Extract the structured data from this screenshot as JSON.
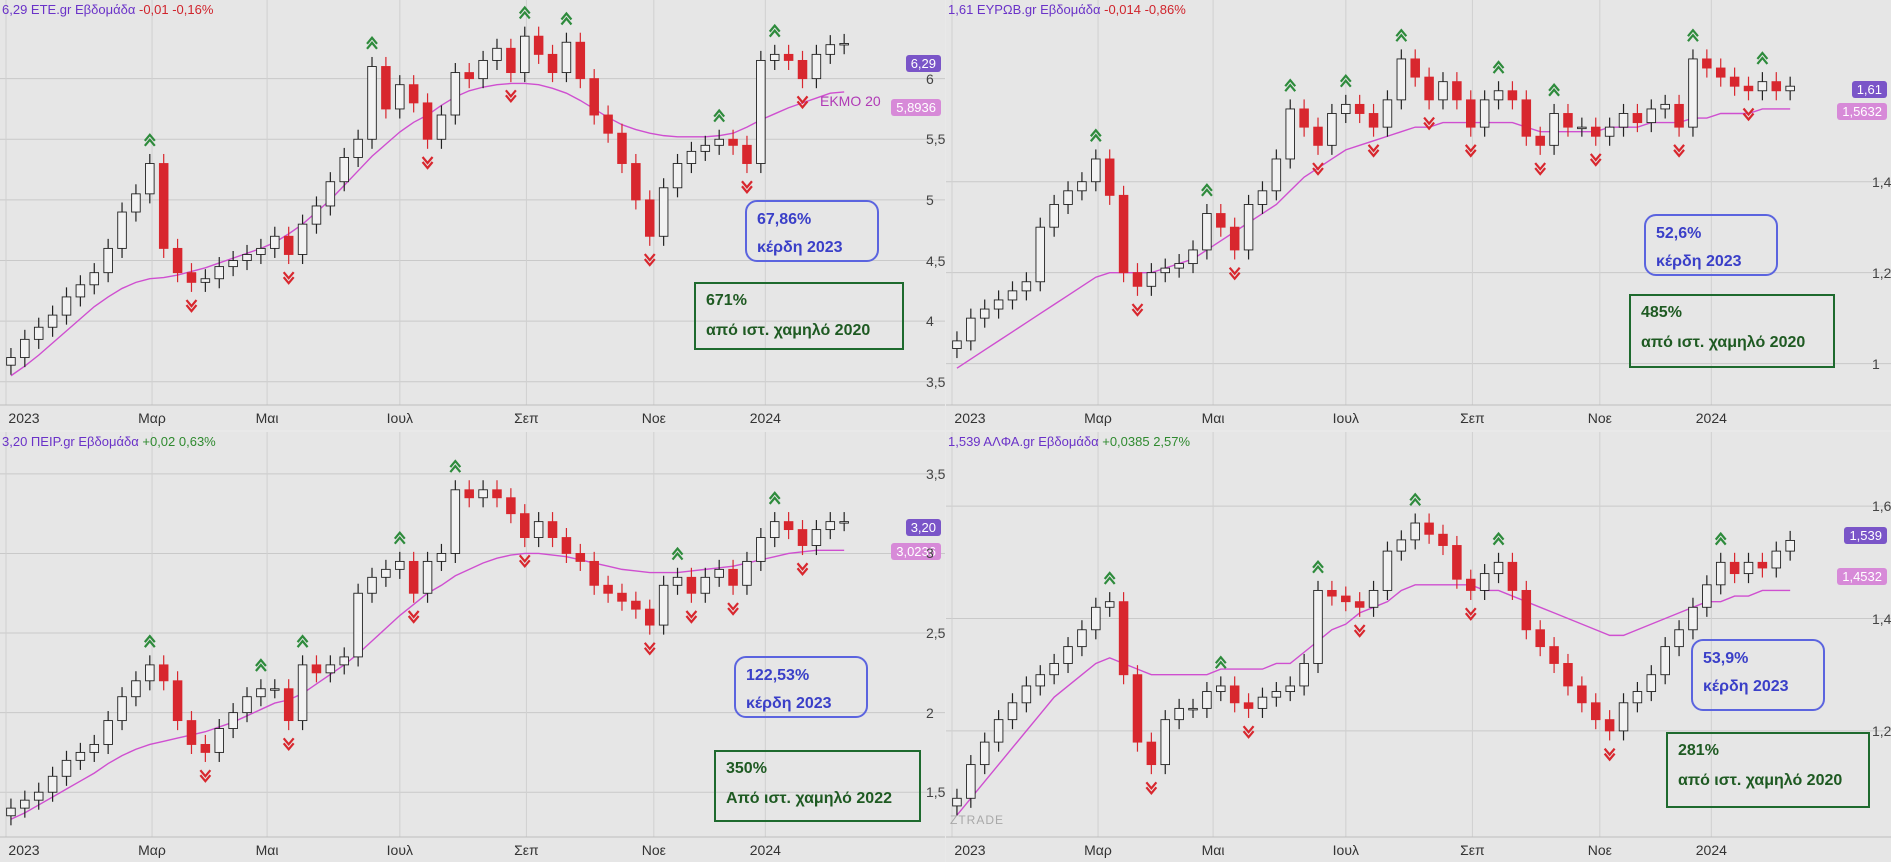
{
  "colors": {
    "up_fill": "#f2f2f2",
    "down_fill": "#d8272e",
    "ma": "#cf4fd0",
    "up_arrow": "#2e8b3c",
    "down_arrow": "#d8272e",
    "close_badge": "#7a55c8",
    "ma_badge": "#d78ad8"
  },
  "x_labels": [
    "2023",
    "Μαρ",
    "Μαι",
    "Ιουλ",
    "Σεπ",
    "Νοε",
    "2024"
  ],
  "watermark": "ZTRADE",
  "panels": [
    {
      "symbol_text": "6,29 ΕΤΕ.gr Εβδομάδα",
      "change_text": "-0,01 -0,16%",
      "close_badge": "6,29",
      "ma_badge": "5,8936",
      "ma_label": "ΕΚΜΟ 20",
      "blue_box": [
        "67,86%",
        "κέρδη 2023"
      ],
      "green_box": [
        "671%",
        "από ιστ. χαμηλό 2020"
      ],
      "y_ticks": [
        "3,5",
        "4",
        "4,5",
        "5",
        "5,5",
        "6"
      ]
    },
    {
      "symbol_text": "1,61 ΕΥΡΩΒ.gr Εβδομάδα",
      "change_text": "-0,014 -0,86%",
      "close_badge": "1,61",
      "ma_badge": "1,5632",
      "ma_label": "",
      "blue_box": [
        "52,6%",
        "κέρδη 2023"
      ],
      "green_box": [
        "485%",
        "από ιστ. χαμηλό 2020"
      ],
      "y_ticks": [
        "1",
        "1,2",
        "1,4"
      ]
    },
    {
      "symbol_text": "3,20 ΠΕΙΡ.gr Εβδομάδα",
      "change_text": "+0,02 0,63%",
      "close_badge": "3,20",
      "ma_badge": "3,0236",
      "ma_label": "",
      "blue_box": [
        "122,53%",
        "κέρδη 2023"
      ],
      "green_box": [
        "350%",
        "Από ιστ. χαμηλό 2022"
      ],
      "y_ticks": [
        "1,5",
        "2",
        "2,5",
        "3",
        "3,5"
      ]
    },
    {
      "symbol_text": "1,539 ΑΛΦΑ.gr Εβδομάδα",
      "change_text": "+0,0385 2,57%",
      "close_badge": "1,539",
      "ma_badge": "1,4532",
      "ma_label": "",
      "blue_box": [
        "53,9%",
        "κέρδη 2023"
      ],
      "green_box": [
        "281%",
        "από ιστ. χαμηλό 2020"
      ],
      "y_ticks": [
        "1,2",
        "1,4",
        "1,6"
      ]
    }
  ],
  "chart_data": [
    {
      "type": "candlestick",
      "title": "6,29 ΕΤΕ.gr Εβδομάδα",
      "ylim": [
        3.35,
        6.5
      ],
      "yticks": [
        3.5,
        4,
        4.5,
        5,
        5.5,
        6
      ],
      "closes": [
        3.7,
        3.85,
        3.95,
        4.05,
        4.2,
        4.3,
        4.4,
        4.6,
        4.9,
        5.05,
        5.3,
        4.6,
        4.4,
        4.32,
        4.35,
        4.45,
        4.5,
        4.55,
        4.6,
        4.7,
        4.55,
        4.8,
        4.95,
        5.15,
        5.35,
        5.5,
        6.1,
        5.75,
        5.95,
        5.8,
        5.5,
        5.7,
        6.05,
        6.0,
        6.15,
        6.25,
        6.05,
        6.35,
        6.2,
        6.05,
        6.3,
        6.0,
        5.7,
        5.55,
        5.3,
        5.0,
        4.7,
        5.1,
        5.3,
        5.4,
        5.45,
        5.5,
        5.45,
        5.3,
        6.15,
        6.2,
        6.15,
        6.0,
        6.2,
        6.28,
        6.29
      ],
      "ma": [
        3.55,
        3.63,
        3.72,
        3.82,
        3.92,
        4.02,
        4.12,
        4.2,
        4.27,
        4.32,
        4.35,
        4.36,
        4.38,
        4.41,
        4.44,
        4.48,
        4.52,
        4.56,
        4.6,
        4.65,
        4.72,
        4.8,
        4.9,
        5.0,
        5.12,
        5.24,
        5.36,
        5.46,
        5.56,
        5.64,
        5.7,
        5.78,
        5.85,
        5.9,
        5.93,
        5.95,
        5.96,
        5.96,
        5.95,
        5.92,
        5.88,
        5.82,
        5.75,
        5.68,
        5.62,
        5.58,
        5.55,
        5.53,
        5.52,
        5.52,
        5.52,
        5.53,
        5.55,
        5.6,
        5.66,
        5.71,
        5.76,
        5.8,
        5.84,
        5.88,
        5.89
      ]
    },
    {
      "type": "candlestick",
      "title": "1,61 ΕΥΡΩΒ.gr Εβδομάδα",
      "ylim": [
        0.92,
        1.76
      ],
      "yticks": [
        1,
        1.2,
        1.4
      ],
      "closes": [
        1.05,
        1.1,
        1.12,
        1.14,
        1.16,
        1.18,
        1.3,
        1.35,
        1.38,
        1.4,
        1.45,
        1.37,
        1.2,
        1.17,
        1.2,
        1.21,
        1.22,
        1.25,
        1.33,
        1.3,
        1.25,
        1.35,
        1.38,
        1.45,
        1.56,
        1.52,
        1.48,
        1.55,
        1.57,
        1.55,
        1.52,
        1.58,
        1.67,
        1.63,
        1.58,
        1.62,
        1.58,
        1.52,
        1.58,
        1.6,
        1.58,
        1.5,
        1.48,
        1.55,
        1.52,
        1.52,
        1.5,
        1.52,
        1.55,
        1.53,
        1.56,
        1.57,
        1.52,
        1.67,
        1.65,
        1.63,
        1.61,
        1.6,
        1.62,
        1.6,
        1.61
      ],
      "ma": [
        0.99,
        1.01,
        1.03,
        1.05,
        1.07,
        1.09,
        1.11,
        1.13,
        1.15,
        1.17,
        1.19,
        1.2,
        1.2,
        1.2,
        1.2,
        1.21,
        1.22,
        1.23,
        1.25,
        1.27,
        1.29,
        1.31,
        1.33,
        1.35,
        1.38,
        1.41,
        1.43,
        1.45,
        1.47,
        1.48,
        1.49,
        1.5,
        1.51,
        1.52,
        1.52,
        1.53,
        1.53,
        1.53,
        1.53,
        1.53,
        1.53,
        1.52,
        1.51,
        1.51,
        1.51,
        1.51,
        1.51,
        1.52,
        1.52,
        1.52,
        1.53,
        1.53,
        1.53,
        1.54,
        1.54,
        1.55,
        1.55,
        1.55,
        1.56,
        1.56,
        1.56
      ]
    },
    {
      "type": "candlestick",
      "title": "3,20 ΠΕΙΡ.gr Εβδομάδα",
      "ylim": [
        1.25,
        3.65
      ],
      "yticks": [
        1.5,
        2,
        2.5,
        3,
        3.5
      ],
      "closes": [
        1.4,
        1.45,
        1.5,
        1.6,
        1.7,
        1.75,
        1.8,
        1.95,
        2.1,
        2.2,
        2.3,
        2.2,
        1.95,
        1.8,
        1.75,
        1.9,
        2.0,
        2.1,
        2.15,
        2.15,
        1.95,
        2.3,
        2.25,
        2.3,
        2.35,
        2.75,
        2.85,
        2.9,
        2.95,
        2.75,
        2.95,
        3.0,
        3.4,
        3.35,
        3.4,
        3.35,
        3.25,
        3.1,
        3.2,
        3.1,
        3.0,
        2.95,
        2.8,
        2.75,
        2.7,
        2.65,
        2.55,
        2.8,
        2.85,
        2.75,
        2.85,
        2.9,
        2.8,
        2.95,
        3.1,
        3.2,
        3.15,
        3.05,
        3.15,
        3.2,
        3.2
      ],
      "ma": [
        1.33,
        1.37,
        1.42,
        1.47,
        1.52,
        1.57,
        1.62,
        1.68,
        1.73,
        1.77,
        1.8,
        1.82,
        1.84,
        1.86,
        1.88,
        1.91,
        1.94,
        1.98,
        2.02,
        2.06,
        2.08,
        2.12,
        2.18,
        2.24,
        2.3,
        2.37,
        2.45,
        2.53,
        2.61,
        2.68,
        2.75,
        2.8,
        2.86,
        2.9,
        2.94,
        2.97,
        2.99,
        3.0,
        3.0,
        2.99,
        2.98,
        2.96,
        2.94,
        2.92,
        2.9,
        2.89,
        2.88,
        2.88,
        2.88,
        2.89,
        2.9,
        2.91,
        2.92,
        2.94,
        2.96,
        2.98,
        3.0,
        3.01,
        3.02,
        3.02,
        3.02
      ]
    },
    {
      "type": "candlestick",
      "title": "1,539 ΑΛΦΑ.gr Εβδομάδα",
      "ylim": [
        1.02,
        1.7
      ],
      "yticks": [
        1.2,
        1.4,
        1.6
      ],
      "closes": [
        1.08,
        1.14,
        1.18,
        1.22,
        1.25,
        1.28,
        1.3,
        1.32,
        1.35,
        1.38,
        1.42,
        1.43,
        1.3,
        1.18,
        1.14,
        1.22,
        1.24,
        1.24,
        1.27,
        1.28,
        1.25,
        1.24,
        1.26,
        1.27,
        1.28,
        1.32,
        1.45,
        1.44,
        1.43,
        1.42,
        1.45,
        1.52,
        1.54,
        1.57,
        1.55,
        1.53,
        1.47,
        1.45,
        1.48,
        1.5,
        1.45,
        1.38,
        1.35,
        1.32,
        1.28,
        1.25,
        1.22,
        1.2,
        1.25,
        1.27,
        1.3,
        1.35,
        1.38,
        1.42,
        1.46,
        1.5,
        1.48,
        1.5,
        1.49,
        1.52,
        1.539
      ],
      "ma": [
        1.05,
        1.08,
        1.11,
        1.14,
        1.17,
        1.2,
        1.23,
        1.26,
        1.28,
        1.3,
        1.32,
        1.33,
        1.32,
        1.31,
        1.3,
        1.3,
        1.3,
        1.3,
        1.3,
        1.31,
        1.31,
        1.31,
        1.31,
        1.32,
        1.32,
        1.34,
        1.36,
        1.38,
        1.39,
        1.41,
        1.42,
        1.43,
        1.45,
        1.46,
        1.46,
        1.46,
        1.46,
        1.46,
        1.45,
        1.45,
        1.44,
        1.43,
        1.42,
        1.41,
        1.4,
        1.39,
        1.38,
        1.37,
        1.37,
        1.38,
        1.39,
        1.4,
        1.41,
        1.42,
        1.43,
        1.43,
        1.44,
        1.44,
        1.45,
        1.45,
        1.45
      ]
    }
  ]
}
